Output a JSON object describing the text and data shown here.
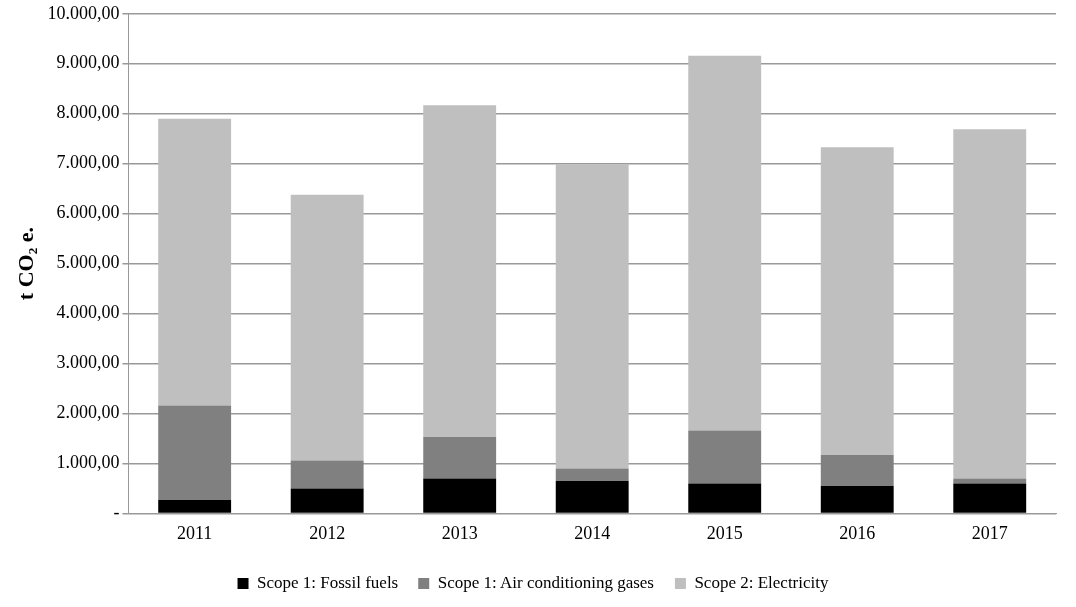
{
  "chart_data": {
    "type": "bar",
    "stacked": true,
    "ylabel": "t CO₂ e.",
    "categories": [
      "2011",
      "2012",
      "2013",
      "2014",
      "2015",
      "2016",
      "2017"
    ],
    "series": [
      {
        "name": "Scope 1: Fossil fuels",
        "color": "#000000",
        "values": [
          270,
          500,
          700,
          650,
          600,
          550,
          600
        ]
      },
      {
        "name": "Scope 1: Air conditioning gases",
        "color": "#808080",
        "values": [
          1890,
          560,
          830,
          250,
          1060,
          620,
          100
        ]
      },
      {
        "name": "Scope 2: Electricity",
        "color": "#bfbfbf",
        "values": [
          5740,
          5320,
          6640,
          6090,
          7500,
          6160,
          6990
        ]
      }
    ],
    "ylim": [
      0,
      10000
    ],
    "yticks": [
      {
        "value": 0,
        "label": "-"
      },
      {
        "value": 1000,
        "label": "1.000,00"
      },
      {
        "value": 2000,
        "label": "2.000,00"
      },
      {
        "value": 3000,
        "label": "3.000,00"
      },
      {
        "value": 4000,
        "label": "4.000,00"
      },
      {
        "value": 5000,
        "label": "5.000,00"
      },
      {
        "value": 6000,
        "label": "6.000,00"
      },
      {
        "value": 7000,
        "label": "7.000,00"
      },
      {
        "value": 8000,
        "label": "8.000,00"
      },
      {
        "value": 9000,
        "label": "9.000,00"
      },
      {
        "value": 10000,
        "label": "10.000,00"
      }
    ],
    "grid": "y",
    "legend": "bottom"
  }
}
